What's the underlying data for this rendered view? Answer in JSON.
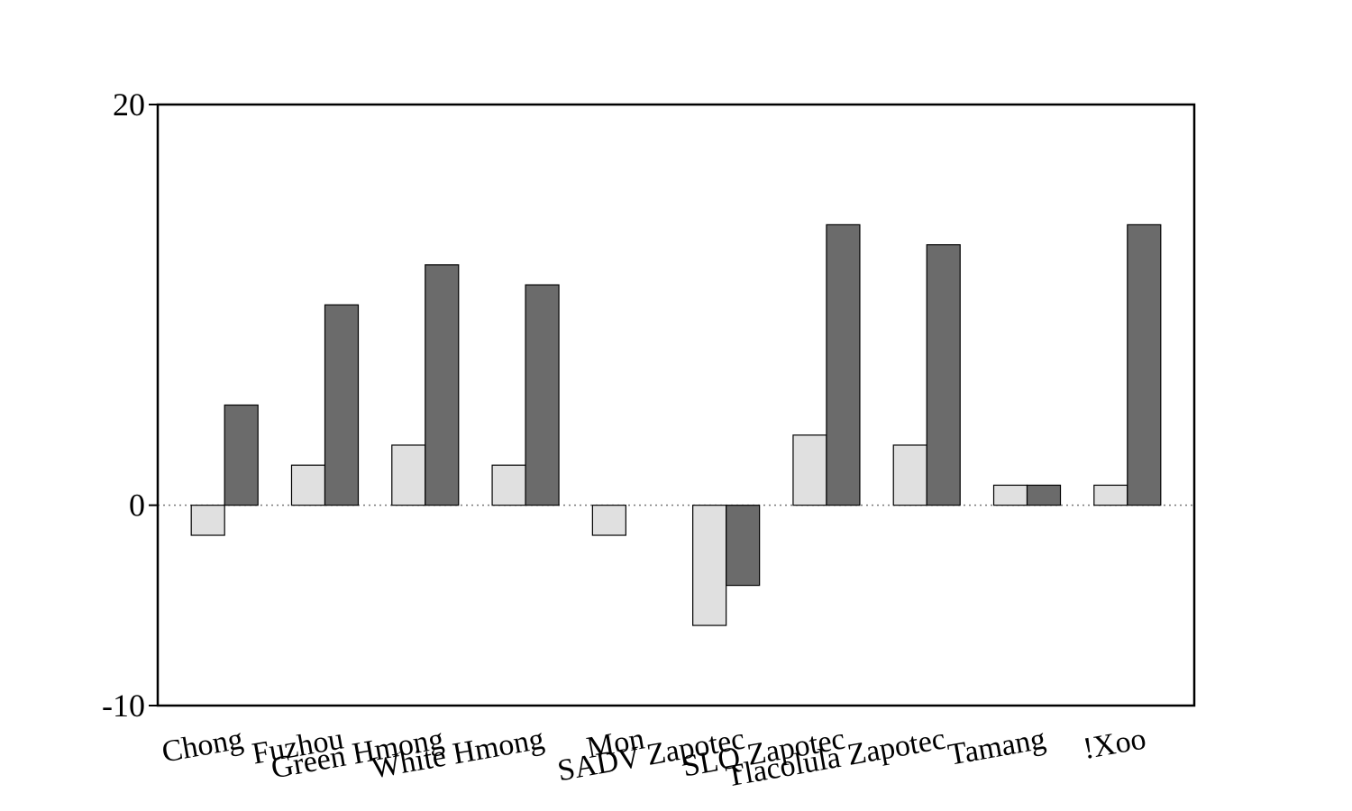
{
  "chart_data": {
    "type": "bar",
    "categories": [
      "Chong",
      "Fuzhou",
      "Green Hmong",
      "White Hmong",
      "Mon",
      "SADV Zapotec",
      "SLQ Zapotec",
      "Tlacolula Zapotec",
      "Tamang",
      "!Xoo"
    ],
    "series": [
      {
        "color": "#e0e0e0",
        "values": [
          -1.5,
          2,
          3,
          2,
          -1.5,
          -6,
          3.5,
          3,
          1,
          1
        ]
      },
      {
        "color": "#6b6b6b",
        "values": [
          5,
          10,
          12,
          11,
          0,
          -4,
          14,
          13,
          1,
          14
        ]
      }
    ],
    "ylim": [
      -10,
      20
    ],
    "yticks": [
      -10,
      0,
      20
    ]
  }
}
